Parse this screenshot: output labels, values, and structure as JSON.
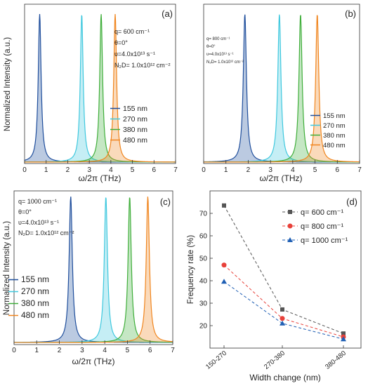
{
  "colors": {
    "155 nm": "#1f4e9c",
    "270 nm": "#3fc8de",
    "380 nm": "#3fae3a",
    "480 nm": "#f0851e",
    "series_600": "#555555",
    "series_800": "#e8413a",
    "series_1000": "#1f5fb4"
  },
  "chart_data": [
    {
      "panel": "(a)",
      "type": "line",
      "xlabel": "ω/2π (THz)",
      "ylabel": "Normalized Intensity (a.u.)",
      "xlim": [
        0,
        7
      ],
      "xticks": [
        "0",
        "1",
        "2",
        "3",
        "4",
        "5",
        "6",
        "7"
      ],
      "params": [
        "q= 600 cm⁻¹",
        "θ=0°",
        "υ=4.0x10¹³ s⁻¹",
        "N₂D= 1.0x10¹² cm⁻²"
      ],
      "series": [
        {
          "name": "155 nm",
          "peak_thz": 0.7,
          "value": 1.0
        },
        {
          "name": "270 nm",
          "peak_thz": 2.65,
          "value": 1.0
        },
        {
          "name": "380 nm",
          "peak_thz": 3.55,
          "value": 1.0
        },
        {
          "name": "480 nm",
          "peak_thz": 4.2,
          "value": 1.0
        }
      ]
    },
    {
      "panel": "(b)",
      "type": "line",
      "xlabel": "ω/2π (THz)",
      "ylabel": "Normalized Intensity (a.u.)",
      "xlim": [
        0,
        7
      ],
      "xticks": [
        "0",
        "1",
        "2",
        "3",
        "4",
        "5",
        "6",
        "7"
      ],
      "params": [
        "q= 800 cm⁻¹",
        "θ=0°",
        "υ=4.0x10¹³ s⁻¹",
        "N₂D= 1.0x10¹² cm⁻²"
      ],
      "series": [
        {
          "name": "155 nm",
          "peak_thz": 1.85,
          "value": 1.0
        },
        {
          "name": "270 nm",
          "peak_thz": 3.4,
          "value": 1.0
        },
        {
          "name": "380 nm",
          "peak_thz": 4.35,
          "value": 1.0
        },
        {
          "name": "480 nm",
          "peak_thz": 5.1,
          "value": 1.0
        }
      ]
    },
    {
      "panel": "(c)",
      "type": "line",
      "xlabel": "ω/2π (THz)",
      "ylabel": "Normalized Intensity (a.u.)",
      "xlim": [
        0,
        7
      ],
      "xticks": [
        "0",
        "1",
        "2",
        "3",
        "4",
        "5",
        "6",
        "7"
      ],
      "params": [
        "q= 1000 cm⁻¹",
        "θ=0°",
        "υ=4.0x10¹³ s⁻¹",
        "N₂D= 1.0x10¹² cm⁻²"
      ],
      "series": [
        {
          "name": "155 nm",
          "peak_thz": 2.5,
          "value": 1.0
        },
        {
          "name": "270 nm",
          "peak_thz": 4.05,
          "value": 1.0
        },
        {
          "name": "380 nm",
          "peak_thz": 5.1,
          "value": 1.0
        },
        {
          "name": "480 nm",
          "peak_thz": 5.9,
          "value": 1.0
        }
      ]
    },
    {
      "panel": "(d)",
      "type": "line",
      "xlabel": "Width change (nm)",
      "ylabel": "Frequency rate (%)",
      "categories": [
        "150-270",
        "270-380",
        "380-480"
      ],
      "ylim": [
        10,
        80
      ],
      "yticks": [
        "20",
        "30",
        "40",
        "50",
        "60",
        "70"
      ],
      "series": [
        {
          "name": "q= 600 cm⁻¹",
          "values": [
            73.5,
            27.2,
            16.5
          ]
        },
        {
          "name": "q= 800 cm⁻¹",
          "values": [
            47.0,
            23.2,
            15.0
          ]
        },
        {
          "name": "q= 1000 cm⁻¹",
          "values": [
            39.6,
            21.0,
            14.0
          ]
        }
      ]
    }
  ]
}
